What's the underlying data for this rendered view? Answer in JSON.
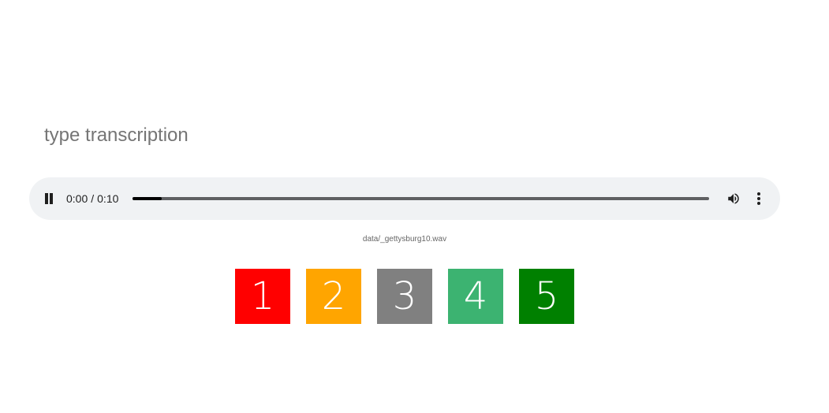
{
  "transcription": {
    "placeholder": "type transcription",
    "value": ""
  },
  "audio": {
    "state": "playing",
    "current_time": "0:00",
    "time_separator": "/",
    "duration": "0:10",
    "progress": 0.05,
    "filename": "data/_gettysburg10.wav",
    "icons": {
      "play_state": "pause-icon",
      "volume": "volume-icon",
      "menu": "more-vert-icon"
    }
  },
  "ratings": [
    {
      "label": "1",
      "color": "#ff0000"
    },
    {
      "label": "2",
      "color": "#ffa500"
    },
    {
      "label": "3",
      "color": "#808080"
    },
    {
      "label": "4",
      "color": "#3cb371"
    },
    {
      "label": "5",
      "color": "#008000"
    }
  ]
}
